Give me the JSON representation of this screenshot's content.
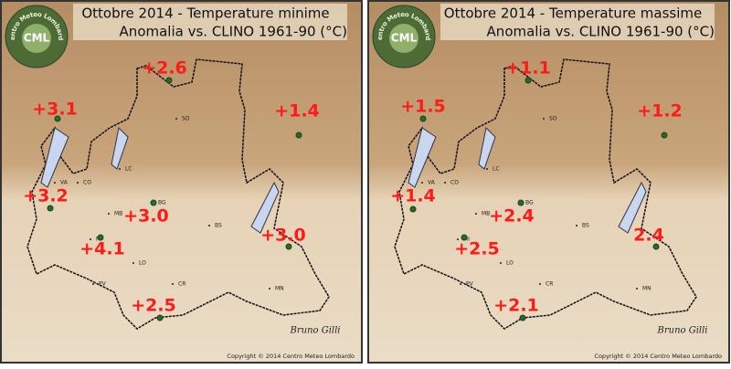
{
  "logo": {
    "initials": "CML",
    "name": "Centro Meteo Lombardo"
  },
  "cities": [
    "SO",
    "LC",
    "CO",
    "VA",
    "BG",
    "MB",
    "MI",
    "BS",
    "LO",
    "PV",
    "CR",
    "MN"
  ],
  "panels": [
    {
      "title": "Ottobre 2014 - Temperature minime",
      "subtitle": "Anomalia vs. CLINO 1961-90 (°C)",
      "stations": [
        "+2.6",
        "+3.1",
        "+1.4",
        "+3.2",
        "+3.0",
        "+4.1",
        "+3.0",
        "+2.5"
      ],
      "signature": "Bruno Gilli",
      "copyright": "Copyright © 2014 Centro Meteo Lombardo"
    },
    {
      "title": "Ottobre 2014 - Temperature massime",
      "subtitle": "Anomalia vs. CLINO 1961-90 (°C)",
      "stations": [
        "+1.1",
        "+1.5",
        "+1.2",
        "+1.4",
        "+2.4",
        "+2.5",
        "2.4",
        "+2.1"
      ],
      "signature": "Bruno Gilli",
      "copyright": "Copyright © 2014 Centro Meteo Lombardo"
    }
  ]
}
